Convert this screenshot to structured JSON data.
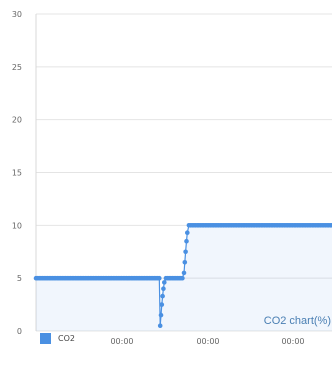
{
  "chart_data": {
    "type": "line",
    "caption": "CO2 chart(%)",
    "ylim": [
      0,
      30
    ],
    "y_ticks": [
      0,
      5,
      10,
      15,
      20,
      25,
      30
    ],
    "x_tick_labels": [
      "00:00",
      "00:00",
      "00:00"
    ],
    "grid": true,
    "legend": "bottom-left",
    "series": [
      {
        "name": "CO2",
        "color": "#4a90e2",
        "points": [
          [
            0,
            5
          ],
          [
            1,
            5
          ],
          [
            2,
            5
          ],
          [
            3,
            5
          ],
          [
            4,
            5
          ],
          [
            5,
            5
          ],
          [
            6,
            5
          ],
          [
            7,
            5
          ],
          [
            8,
            5
          ],
          [
            9,
            5
          ],
          [
            10,
            5
          ],
          [
            11,
            5
          ],
          [
            12,
            5
          ],
          [
            13,
            5
          ],
          [
            14,
            5
          ],
          [
            15,
            5
          ],
          [
            16,
            5
          ],
          [
            17,
            5
          ],
          [
            18,
            5
          ],
          [
            19,
            5
          ],
          [
            20,
            5
          ],
          [
            21,
            5
          ],
          [
            22,
            5
          ],
          [
            23,
            5
          ],
          [
            24,
            5
          ],
          [
            25,
            5
          ],
          [
            26,
            5
          ],
          [
            27,
            5
          ],
          [
            28,
            5
          ],
          [
            29,
            5
          ],
          [
            30,
            5
          ],
          [
            31,
            5
          ],
          [
            32,
            5
          ],
          [
            33,
            5
          ],
          [
            34,
            5
          ],
          [
            35,
            5
          ],
          [
            36,
            5
          ],
          [
            37,
            5
          ],
          [
            38,
            5
          ],
          [
            39,
            5
          ],
          [
            40,
            5
          ],
          [
            41,
            5
          ],
          [
            42,
            5
          ],
          [
            43,
            5
          ],
          [
            44,
            5
          ],
          [
            45,
            5
          ],
          [
            46,
            5
          ],
          [
            47,
            5
          ],
          [
            48,
            5
          ],
          [
            49,
            5
          ],
          [
            50,
            5
          ],
          [
            51,
            5
          ],
          [
            52,
            5
          ],
          [
            53,
            5
          ],
          [
            54,
            5
          ],
          [
            55,
            5
          ],
          [
            56,
            5
          ],
          [
            57,
            5
          ],
          [
            58,
            5
          ],
          [
            59,
            5
          ],
          [
            60,
            5
          ],
          [
            61,
            5
          ],
          [
            62,
            5
          ],
          [
            63,
            5
          ],
          [
            64,
            5
          ],
          [
            65,
            5
          ],
          [
            66,
            5
          ],
          [
            67,
            5
          ],
          [
            68,
            5
          ],
          [
            69,
            5
          ],
          [
            70,
            5
          ],
          [
            71,
            5
          ],
          [
            72,
            5
          ],
          [
            73,
            5
          ],
          [
            74,
            5
          ],
          [
            75,
            5
          ],
          [
            75.5,
            0.5
          ],
          [
            76,
            1.5
          ],
          [
            76.5,
            2.5
          ],
          [
            77,
            3.3
          ],
          [
            77.5,
            4
          ],
          [
            78,
            4.6
          ],
          [
            79,
            5
          ],
          [
            80,
            5
          ],
          [
            81,
            5
          ],
          [
            82,
            5
          ],
          [
            83,
            5
          ],
          [
            84,
            5
          ],
          [
            85,
            5
          ],
          [
            86,
            5
          ],
          [
            87,
            5
          ],
          [
            88,
            5
          ],
          [
            89,
            5
          ],
          [
            90,
            5.5
          ],
          [
            90.5,
            6.5
          ],
          [
            91,
            7.5
          ],
          [
            91.5,
            8.5
          ],
          [
            92,
            9.3
          ],
          [
            93,
            10
          ],
          [
            94,
            10
          ],
          [
            95,
            10
          ],
          [
            96,
            10
          ],
          [
            97,
            10
          ],
          [
            98,
            10
          ],
          [
            99,
            10
          ],
          [
            100,
            10
          ],
          [
            101,
            10
          ],
          [
            102,
            10
          ],
          [
            103,
            10
          ],
          [
            104,
            10
          ],
          [
            105,
            10
          ],
          [
            106,
            10
          ],
          [
            107,
            10
          ],
          [
            108,
            10
          ],
          [
            109,
            10
          ],
          [
            110,
            10
          ],
          [
            111,
            10
          ],
          [
            112,
            10
          ],
          [
            113,
            10
          ],
          [
            114,
            10
          ],
          [
            115,
            10
          ],
          [
            116,
            10
          ],
          [
            117,
            10
          ],
          [
            118,
            10
          ],
          [
            119,
            10
          ],
          [
            120,
            10
          ],
          [
            121,
            10
          ],
          [
            122,
            10
          ],
          [
            123,
            10
          ],
          [
            124,
            10
          ],
          [
            125,
            10
          ],
          [
            126,
            10
          ],
          [
            127,
            10
          ],
          [
            128,
            10
          ],
          [
            129,
            10
          ],
          [
            130,
            10
          ],
          [
            131,
            10
          ],
          [
            132,
            10
          ],
          [
            133,
            10
          ],
          [
            134,
            10
          ],
          [
            135,
            10
          ],
          [
            136,
            10
          ],
          [
            137,
            10
          ],
          [
            138,
            10
          ],
          [
            139,
            10
          ],
          [
            140,
            10
          ],
          [
            141,
            10
          ],
          [
            142,
            10
          ],
          [
            143,
            10
          ],
          [
            144,
            10
          ],
          [
            145,
            10
          ],
          [
            146,
            10
          ],
          [
            147,
            10
          ],
          [
            148,
            10
          ],
          [
            149,
            10
          ],
          [
            150,
            10
          ],
          [
            151,
            10
          ],
          [
            152,
            10
          ],
          [
            153,
            10
          ],
          [
            154,
            10
          ],
          [
            155,
            10
          ],
          [
            156,
            10
          ],
          [
            157,
            10
          ],
          [
            158,
            10
          ],
          [
            159,
            10
          ],
          [
            160,
            10
          ],
          [
            161,
            10
          ],
          [
            162,
            10
          ],
          [
            163,
            10
          ],
          [
            164,
            10
          ],
          [
            165,
            10
          ],
          [
            166,
            10
          ],
          [
            167,
            10
          ],
          [
            168,
            10
          ],
          [
            169,
            10
          ],
          [
            170,
            10
          ],
          [
            171,
            10
          ],
          [
            172,
            10
          ],
          [
            173,
            10
          ],
          [
            174,
            10
          ],
          [
            175,
            10
          ],
          [
            176,
            10
          ],
          [
            177,
            10
          ],
          [
            178,
            10
          ],
          [
            179,
            10
          ],
          [
            180,
            10
          ]
        ]
      }
    ]
  }
}
